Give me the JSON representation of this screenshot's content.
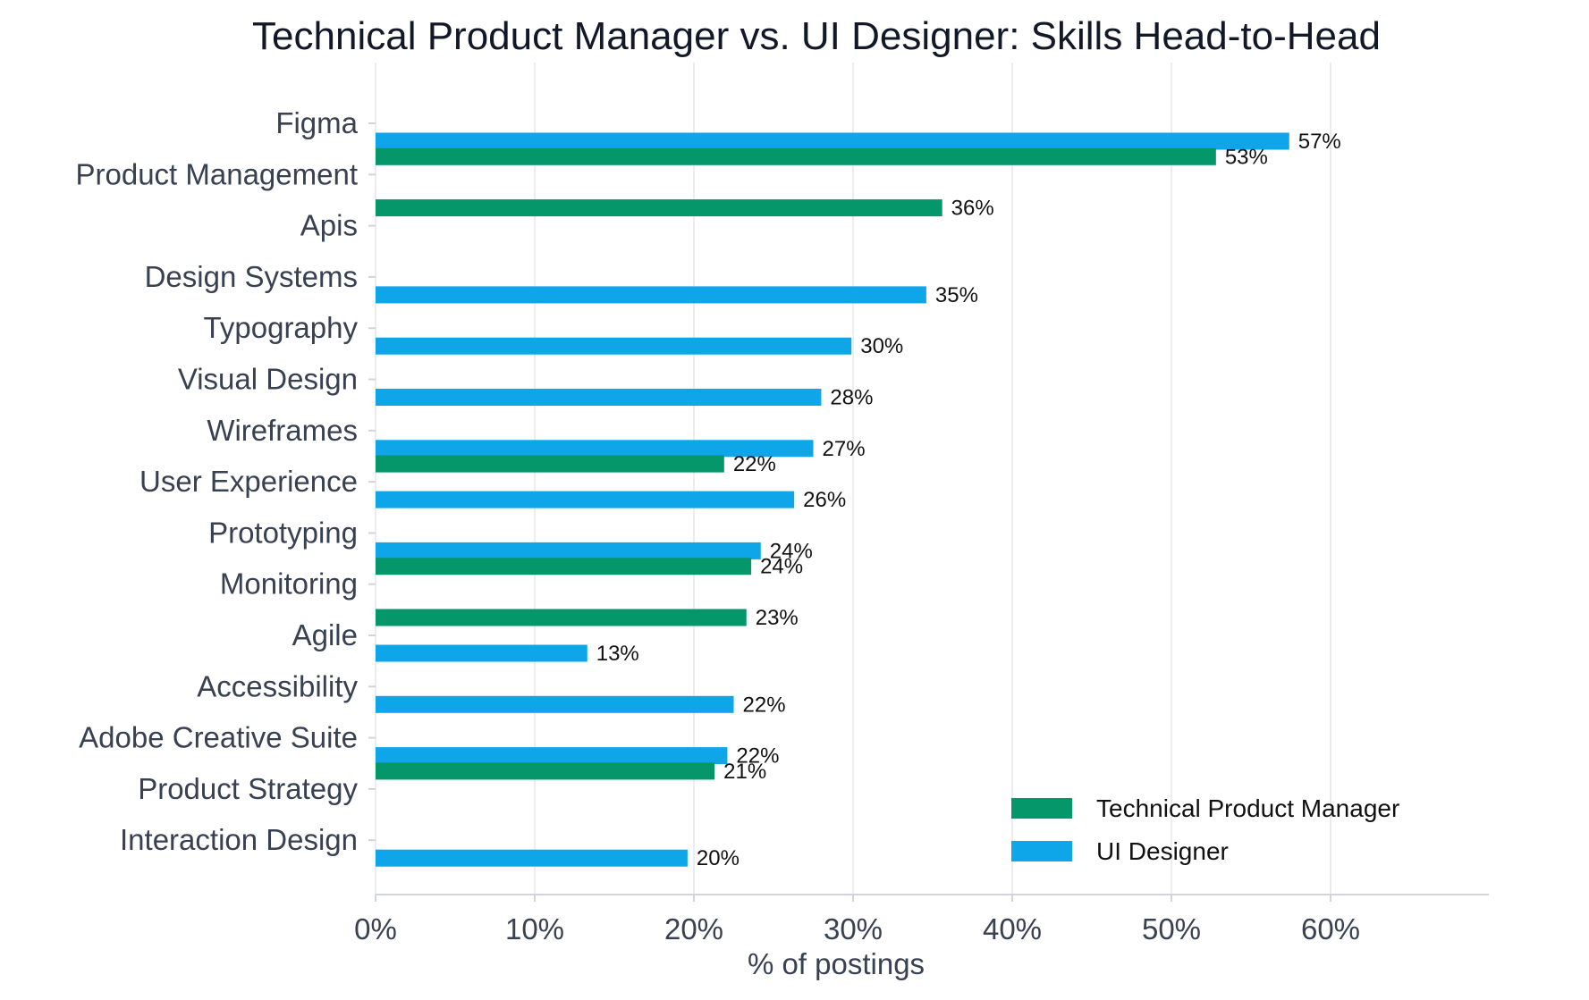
{
  "chart_data": {
    "type": "bar",
    "orientation": "horizontal",
    "title": "Technical Product Manager vs. UI Designer: Skills Head-to-Head",
    "xlabel": "% of postings",
    "ylabel": "",
    "xlim": [
      0,
      70
    ],
    "x_ticks": [
      0,
      10,
      20,
      30,
      40,
      50,
      60
    ],
    "x_tick_format": "{v}%",
    "grid": "vertical",
    "legend_position": "bottom-right",
    "categories": [
      "Figma",
      "Product Management",
      "Apis",
      "Design Systems",
      "Typography",
      "Visual Design",
      "Wireframes",
      "User Experience",
      "Prototyping",
      "Monitoring",
      "Agile",
      "Accessibility",
      "Adobe Creative Suite",
      "Product Strategy",
      "Interaction Design"
    ],
    "series": [
      {
        "name": "Technical Product Manager",
        "color": "#059669",
        "values": [
          null,
          52.8,
          35.6,
          null,
          null,
          null,
          null,
          21.9,
          null,
          23.6,
          23.3,
          null,
          null,
          21.3,
          null
        ],
        "labels": [
          null,
          "53%",
          "36%",
          null,
          null,
          null,
          null,
          "22%",
          null,
          "24%",
          "23%",
          null,
          null,
          "21%",
          null
        ]
      },
      {
        "name": "UI Designer",
        "color": "#0ea5e9",
        "values": [
          57.4,
          null,
          null,
          34.6,
          29.9,
          28.0,
          27.5,
          26.3,
          24.2,
          null,
          13.3,
          22.5,
          22.1,
          null,
          19.6
        ],
        "labels": [
          "57%",
          null,
          null,
          "35%",
          "30%",
          "28%",
          "27%",
          "26%",
          "24%",
          null,
          "13%",
          "22%",
          "22%",
          null,
          "20%"
        ]
      }
    ]
  }
}
